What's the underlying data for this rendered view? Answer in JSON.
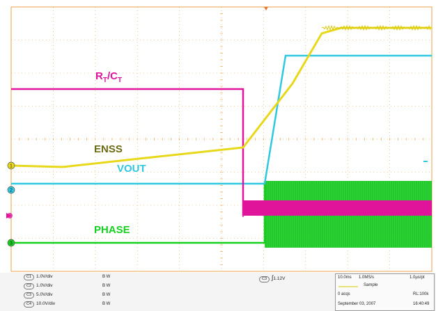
{
  "traces": {
    "rtct": {
      "label_main": "R",
      "label_sub1": "T",
      "label_mid": "/C",
      "label_sub2": "T",
      "color": "#e0149b"
    },
    "enss": {
      "label": "ENSS",
      "color": "#e8d81a",
      "label_color": "#6b6b14"
    },
    "vout": {
      "label": "VOUT",
      "color": "#2ec8e0"
    },
    "phase": {
      "label": "PHASE",
      "color": "#16d020"
    }
  },
  "grid": {
    "color": "#e8a24a"
  },
  "channels": [
    {
      "id": "C1",
      "scale": "1.0V/div",
      "bw": "B W"
    },
    {
      "id": "C2",
      "scale": "1.0V/div",
      "bw": "B W"
    },
    {
      "id": "C3",
      "scale": "5.0V/div",
      "bw": "B W"
    },
    {
      "id": "C4",
      "scale": "10.0V/div",
      "bw": "B W"
    }
  ],
  "trigger": {
    "channel": "C3",
    "symbol": "∫",
    "level": "1.12V"
  },
  "acquisition": {
    "timebase": "10.0ms",
    "sample_rate": "1.0MS/s",
    "resolution": "1.0µs/pt",
    "mode": "Sample",
    "acqs": "0 acqs",
    "record_length": "RL:100k",
    "date": "September 03, 2007",
    "time": "16:40:49"
  }
}
